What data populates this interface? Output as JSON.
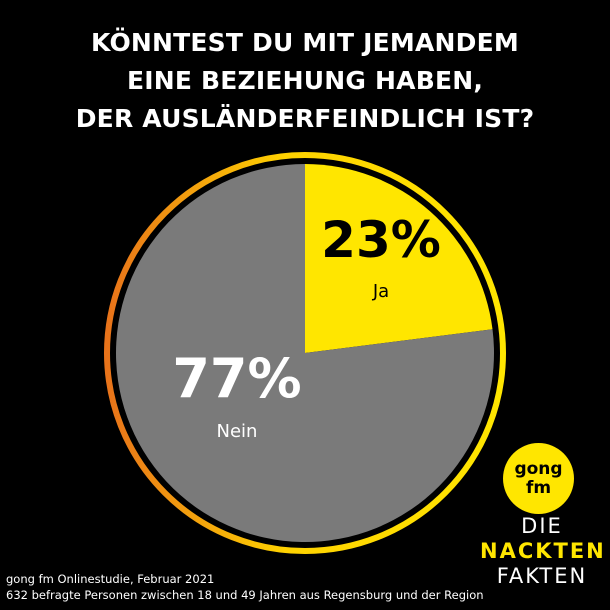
{
  "header": {
    "title_lines": [
      "KÖNNTEST DU MIT JEMANDEM",
      "EINE BEZIEHUNG HABEN,",
      "DER AUSLÄNDERFEINDLICH IST?"
    ]
  },
  "chart_data": {
    "type": "pie",
    "slices": [
      {
        "label": "Ja",
        "value": 23,
        "display": "23%",
        "color": "#ffe600",
        "text_color": "#000000"
      },
      {
        "label": "Nein",
        "value": 77,
        "display": "77%",
        "color": "#7a7a7a",
        "text_color": "#ffffff"
      }
    ],
    "ring_gradient": [
      "#e8731a",
      "#ffe600"
    ]
  },
  "footer": {
    "line1": "gong fm Onlinestudie, Februar 2021",
    "line2": "632 befragte Personen zwischen 18 und 49 Jahren aus Regensburg und der Region"
  },
  "logo": {
    "line1": "gong",
    "line2": "fm",
    "wordmark": [
      "DIE",
      "NACKTEN",
      "FAKTEN"
    ]
  }
}
